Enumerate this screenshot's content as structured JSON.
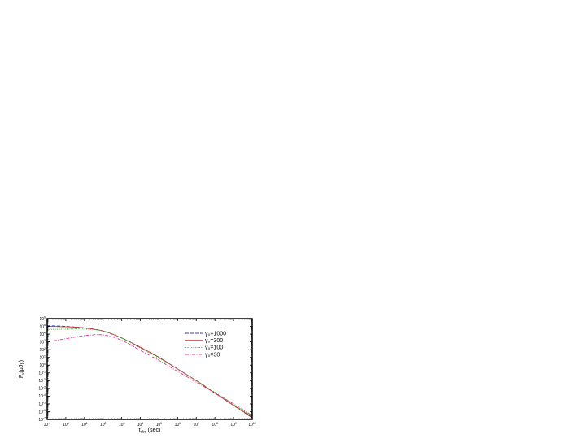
{
  "chart_data": {
    "type": "line",
    "title": "",
    "xlabel": {
      "main": "t",
      "sub": "obs",
      "suffix": " (sec)"
    },
    "ylabel": {
      "main": "F",
      "sub": "ν",
      "suffix": "(μJy)"
    },
    "x_scale": "log",
    "y_scale": "log",
    "xlim_exp": [
      -1,
      10
    ],
    "ylim_exp": [
      -7,
      6
    ],
    "x_tick_exponents": [
      "-1",
      "0",
      "1",
      "2",
      "3",
      "4",
      "5",
      "6",
      "7",
      "8",
      "9",
      "10"
    ],
    "y_tick_exponents": [
      "-7",
      "-6",
      "-5",
      "-4",
      "-3",
      "-2",
      "-1",
      "0",
      "1",
      "2",
      "3",
      "4",
      "5",
      "6"
    ],
    "legend_position": "top-right",
    "series": [
      {
        "name": "γ₀=1000",
        "color": "#3b3bc8",
        "dash": "4,2",
        "points": [
          [
            -1,
            5.1
          ],
          [
            0,
            5.0
          ],
          [
            1,
            4.8
          ],
          [
            2,
            4.4
          ],
          [
            3,
            3.5
          ],
          [
            4,
            2.3
          ],
          [
            5,
            1.0
          ],
          [
            6,
            -0.5
          ],
          [
            7,
            -2.0
          ],
          [
            8,
            -3.6
          ],
          [
            9,
            -5.2
          ],
          [
            10,
            -6.8
          ]
        ]
      },
      {
        "name": "γ₀=300",
        "color": "#c83232",
        "dash": "",
        "points": [
          [
            -1,
            5.0
          ],
          [
            0,
            4.95
          ],
          [
            1,
            4.8
          ],
          [
            2,
            4.4
          ],
          [
            3,
            3.5
          ],
          [
            4,
            2.3
          ],
          [
            5,
            1.0
          ],
          [
            6,
            -0.5
          ],
          [
            7,
            -2.0
          ],
          [
            8,
            -3.6
          ],
          [
            9,
            -5.2
          ],
          [
            10,
            -6.7
          ]
        ]
      },
      {
        "name": "γ₀=100",
        "color": "#33b833",
        "dash": "1.2,1.2",
        "points": [
          [
            -1,
            4.6
          ],
          [
            0,
            4.65
          ],
          [
            1,
            4.65
          ],
          [
            2,
            4.4
          ],
          [
            3,
            3.5
          ],
          [
            4,
            2.2
          ],
          [
            5,
            0.9
          ],
          [
            6,
            -0.5
          ],
          [
            7,
            -2.0
          ],
          [
            8,
            -3.5
          ],
          [
            9,
            -5.1
          ],
          [
            10,
            -6.6
          ]
        ]
      },
      {
        "name": "γ₀=30",
        "color": "#e0338f",
        "dash": "4,1.5,1,1.5",
        "points": [
          [
            -1,
            3.0
          ],
          [
            0,
            3.4
          ],
          [
            1,
            3.8
          ],
          [
            2,
            3.9
          ],
          [
            3,
            3.2
          ],
          [
            4,
            1.9
          ],
          [
            5,
            0.6
          ],
          [
            6,
            -0.8
          ],
          [
            7,
            -2.2
          ],
          [
            8,
            -3.6
          ],
          [
            9,
            -5.0
          ],
          [
            10,
            -6.5
          ]
        ]
      }
    ]
  }
}
